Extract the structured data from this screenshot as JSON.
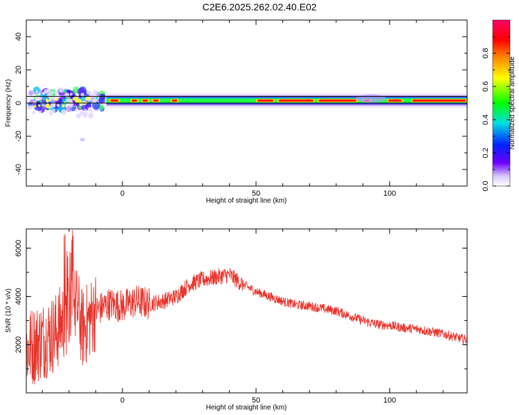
{
  "title": "C2E6.2025.262.02.40.E02",
  "colorbar": {
    "label": "Normalized spectral amplitude",
    "ticks": [
      "0.0",
      "0.2",
      "0.4",
      "0.6",
      "0.8"
    ]
  },
  "chart_data": [
    {
      "type": "heatmap",
      "xlabel": "Height of straight line (km)",
      "ylabel": "Frequency (Hz)",
      "xlim": [
        -36,
        129
      ],
      "ylim": [
        -50,
        50
      ],
      "xticks": [
        "0",
        "50",
        "100"
      ],
      "yticks": [
        "-40",
        "-20",
        "0",
        "20",
        "40"
      ],
      "ridge_frequency_hz": 1.5,
      "value_range": [
        0.0,
        1.0
      ]
    },
    {
      "type": "line",
      "xlabel": "Height of straight line (km)",
      "ylabel": "SNR (10 * v/v)",
      "xlim": [
        -36,
        129
      ],
      "ylim": [
        0,
        6800
      ],
      "xticks": [
        "0",
        "50",
        "100"
      ],
      "yticks": [
        "2000",
        "4000",
        "6000"
      ],
      "series": [
        {
          "color": "#e8332b",
          "x": [
            -36,
            -30,
            -25,
            -20,
            -17,
            -15,
            -12,
            -10,
            -5,
            0,
            5,
            10,
            15,
            20,
            25,
            30,
            35,
            40,
            45,
            50,
            55,
            60,
            65,
            70,
            75,
            80,
            85,
            90,
            95,
            100,
            105,
            110,
            115,
            120,
            125,
            129
          ],
          "y": [
            1800,
            2200,
            2500,
            3400,
            3600,
            2600,
            3100,
            3400,
            3700,
            3600,
            3800,
            3700,
            3800,
            4000,
            4500,
            4700,
            4800,
            4900,
            4500,
            4200,
            4000,
            3800,
            3650,
            3600,
            3500,
            3400,
            3200,
            3000,
            2850,
            2800,
            2700,
            2650,
            2550,
            2450,
            2300,
            2200
          ]
        }
      ]
    }
  ]
}
